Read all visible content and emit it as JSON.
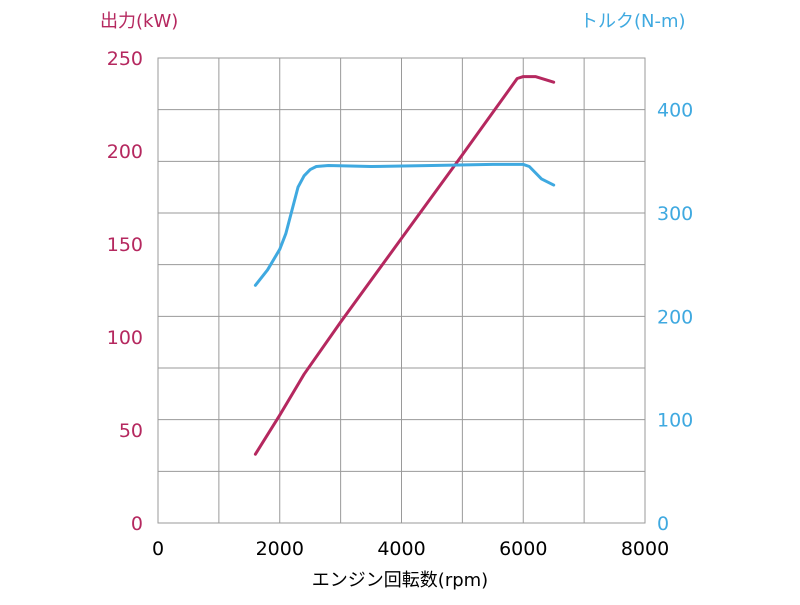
{
  "colors": {
    "power": "#B5285F",
    "torque": "#3FA9E0",
    "grid": "#9a9a9a",
    "frame": "#9a9a9a",
    "xlabel": "#000000"
  },
  "chart_data": {
    "type": "line",
    "xlabel": "エンジン回転数(rpm)",
    "ylabel_left": "出力(kW)",
    "ylabel_right": "トルク(N-m)",
    "xlim": [
      0,
      8000
    ],
    "ylim_left": [
      0,
      250
    ],
    "ylim_right": [
      0,
      450
    ],
    "x_ticks": [
      "0",
      "2000",
      "4000",
      "6000",
      "8000"
    ],
    "y_ticks_left": [
      "0",
      "50",
      "100",
      "150",
      "200",
      "250"
    ],
    "y_ticks_right": [
      "0",
      "100",
      "200",
      "300",
      "400"
    ],
    "grid": true,
    "series": [
      {
        "key": "power",
        "axis": "left",
        "x": [
          1600,
          2000,
          2400,
          3000,
          4000,
          5000,
          5900,
          6000,
          6200,
          6500
        ],
        "y": [
          37,
          58,
          80,
          108,
          153,
          198,
          239,
          240,
          240,
          237
        ]
      },
      {
        "key": "torque",
        "axis": "right",
        "x": [
          1600,
          1800,
          2000,
          2100,
          2300,
          2400,
          2500,
          2600,
          2800,
          3500,
          4500,
          5500,
          6000,
          6100,
          6300,
          6500
        ],
        "y": [
          230,
          245,
          265,
          280,
          325,
          336,
          342,
          345,
          346,
          345,
          346,
          347,
          347,
          345,
          333,
          327
        ]
      }
    ]
  }
}
